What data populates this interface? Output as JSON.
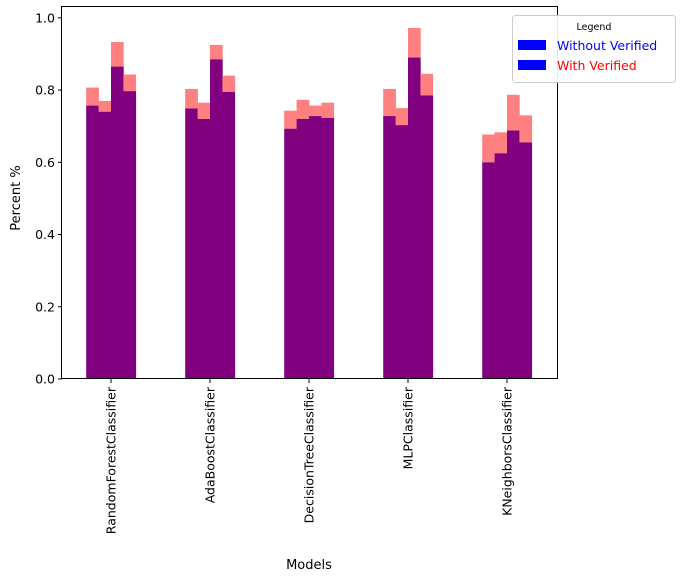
{
  "chart_data": {
    "type": "bar",
    "title": "",
    "xlabel": "Models",
    "ylabel": "Percent %",
    "ylim": [
      0,
      1.0
    ],
    "yticks": [
      "0.0",
      "0.2",
      "0.4",
      "0.6",
      "0.8",
      "1.0"
    ],
    "categories": [
      "RandomForestClassifier",
      "AdaBoostClassifier",
      "DecisionTreeClassifier",
      "MLPClassifier",
      "KNeighborsClassifier"
    ],
    "bars_per_category": 4,
    "series": [
      {
        "name": "Without Verified",
        "values": [
          [
            0.757,
            0.74,
            0.865,
            0.797
          ],
          [
            0.749,
            0.72,
            0.885,
            0.795
          ],
          [
            0.693,
            0.72,
            0.728,
            0.723
          ],
          [
            0.728,
            0.703,
            0.89,
            0.785
          ],
          [
            0.6,
            0.625,
            0.688,
            0.655
          ]
        ]
      },
      {
        "name": "With Verified",
        "values": [
          [
            0.807,
            0.77,
            0.933,
            0.843
          ],
          [
            0.803,
            0.765,
            0.925,
            0.84
          ],
          [
            0.743,
            0.773,
            0.757,
            0.765
          ],
          [
            0.803,
            0.75,
            0.972,
            0.845
          ],
          [
            0.677,
            0.683,
            0.787,
            0.73
          ]
        ]
      }
    ],
    "grid": false,
    "legend": {
      "title": "Legend",
      "placement": "top-right",
      "entries": [
        {
          "label": "Without Verified",
          "swatch": "#0000ff",
          "text_color": "#0000ff"
        },
        {
          "label": "With Verified",
          "swatch": "#0000ff",
          "text_color": "#ff0000"
        }
      ]
    },
    "colors": {
      "overlap": "#800080",
      "excess": "#ff8080"
    }
  }
}
